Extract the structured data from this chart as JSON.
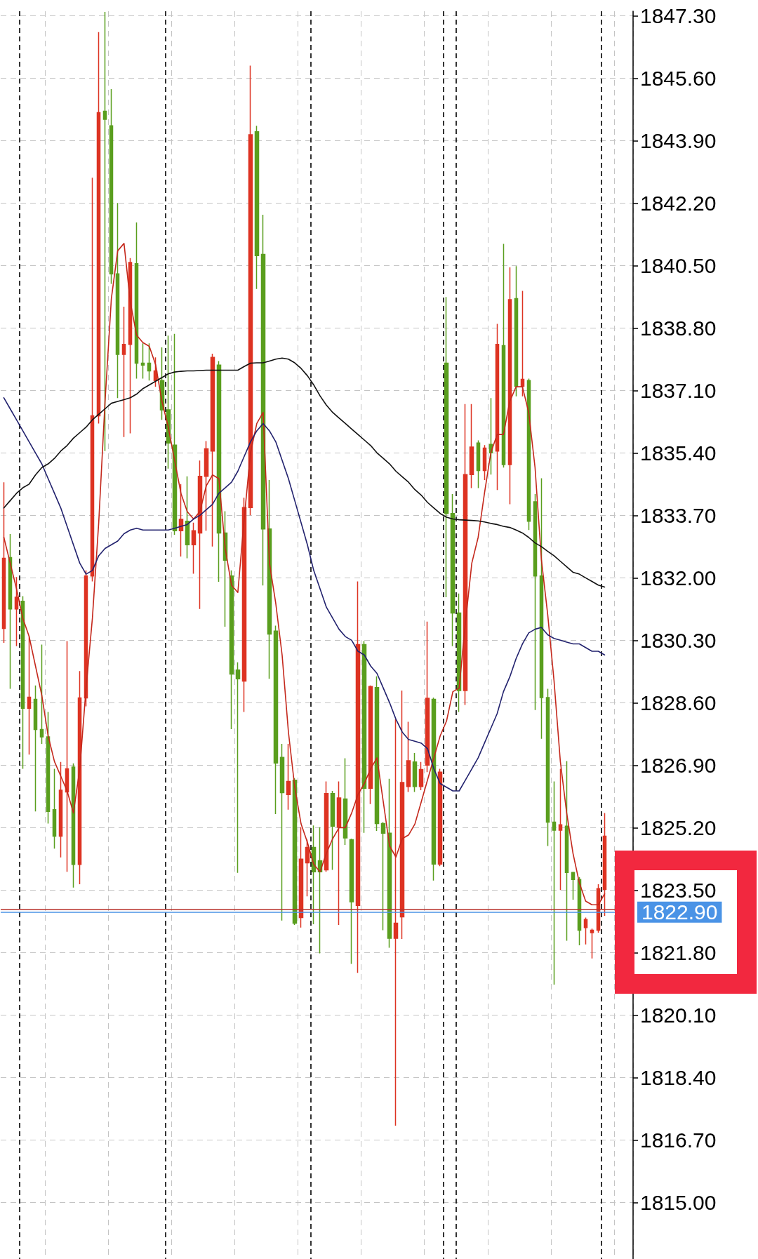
{
  "chart_data": {
    "type": "candlestick",
    "categories": [
      null,
      null,
      null,
      null,
      null,
      null,
      null,
      null,
      null,
      null,
      null,
      null,
      null,
      null,
      null,
      null,
      null,
      null,
      null,
      null,
      null,
      null,
      null,
      null,
      null,
      null,
      null,
      null,
      null,
      null,
      null,
      null,
      null,
      null,
      null,
      null,
      null,
      null,
      null,
      null,
      null,
      null,
      null,
      null,
      null,
      null,
      null,
      null,
      null,
      null,
      null,
      null,
      null,
      null,
      null,
      null,
      null,
      null,
      null,
      null,
      null,
      null,
      null,
      null,
      null,
      null,
      null,
      null,
      null,
      null,
      null,
      null,
      null,
      null,
      null,
      null,
      null,
      null,
      null,
      null,
      null,
      null,
      null,
      null,
      null,
      null,
      null,
      null,
      null,
      null,
      null,
      null,
      null,
      null,
      null,
      null
    ],
    "series": [
      {
        "ohlc": [
          [
            1830.62,
            1834.6,
            1830.23,
            1832.53
          ],
          [
            1832.55,
            1833.19,
            1828.98,
            1831.15
          ],
          [
            1831.15,
            1832.02,
            1830.14,
            1831.47
          ],
          [
            1831.36,
            1831.5,
            1826.8,
            1828.45
          ],
          [
            1828.45,
            1830.4,
            1827.19,
            1828.75
          ],
          [
            1828.69,
            1829.07,
            1825.64,
            1827.87
          ],
          [
            1827.87,
            1830.18,
            1827.48,
            1827.67
          ],
          [
            1827.67,
            1828.35,
            1825.31,
            1825.64
          ],
          [
            1825.69,
            1826.8,
            1824.63,
            1824.97
          ],
          [
            1824.97,
            1826.99,
            1824.39,
            1826.22
          ],
          [
            1826.17,
            1830.28,
            1824.0,
            1826.8
          ],
          [
            1826.85,
            1826.95,
            1823.57,
            1824.2
          ],
          [
            1824.2,
            1829.46,
            1823.66,
            1828.73
          ],
          [
            1828.73,
            1832.2,
            1828.5,
            1832.05
          ],
          [
            1832.05,
            1842.89,
            1831.9,
            1836.41
          ],
          [
            1836.41,
            1846.85,
            1836.2,
            1844.66
          ],
          [
            1844.7,
            1847.4,
            1835.45,
            1844.48
          ],
          [
            1844.3,
            1845.3,
            1840.0,
            1840.27
          ],
          [
            1840.27,
            1842.2,
            1836.89,
            1838.08
          ],
          [
            1838.08,
            1839.38,
            1835.83,
            1838.35
          ],
          [
            1838.35,
            1840.7,
            1835.93,
            1840.58
          ],
          [
            1840.55,
            1841.67,
            1837.42,
            1837.84
          ],
          [
            1837.84,
            1838.38,
            1837.42,
            1837.79
          ],
          [
            1837.84,
            1838.38,
            1837.37,
            1837.63
          ],
          [
            1837.37,
            1838.0,
            1837.2,
            1837.63
          ],
          [
            1837.37,
            1838.27,
            1836.3,
            1836.57
          ],
          [
            1836.57,
            1838.59,
            1834.97,
            1835.67
          ],
          [
            1835.61,
            1838.64,
            1833.17,
            1833.28
          ],
          [
            1833.28,
            1834.55,
            1832.58,
            1833.59
          ],
          [
            1833.54,
            1834.76,
            1832.53,
            1832.9
          ],
          [
            1832.9,
            1833.5,
            1832.11,
            1833.28
          ],
          [
            1833.22,
            1835.19,
            1831.15,
            1834.76
          ],
          [
            1834.76,
            1835.72,
            1833.28,
            1835.51
          ],
          [
            1835.45,
            1838.1,
            1832.85,
            1838.0
          ],
          [
            1837.79,
            1837.9,
            1831.89,
            1833.22
          ],
          [
            1833.22,
            1833.81,
            1830.67,
            1832.48
          ],
          [
            1832.05,
            1832.2,
            1827.88,
            1829.38
          ],
          [
            1829.49,
            1829.7,
            1823.97,
            1829.25
          ],
          [
            1829.19,
            1834.18,
            1828.35,
            1833.91
          ],
          [
            1833.91,
            1845.94,
            1833.7,
            1844.06
          ],
          [
            1844.14,
            1844.3,
            1839.86,
            1840.77
          ],
          [
            1840.8,
            1841.88,
            1831.79,
            1833.33
          ],
          [
            1833.33,
            1834.66,
            1829.25,
            1830.47
          ],
          [
            1830.55,
            1830.7,
            1825.57,
            1826.96
          ],
          [
            1827.11,
            1827.48,
            1822.67,
            1826.15
          ],
          [
            1826.1,
            1827.48,
            1825.69,
            1826.46
          ],
          [
            1826.49,
            1826.55,
            1822.55,
            1822.6
          ],
          [
            1822.75,
            1825.21,
            1822.48,
            1824.34
          ],
          [
            1824.24,
            1824.87,
            1823.33,
            1824.66
          ],
          [
            1824.66,
            1825.26,
            1822.57,
            1824.0
          ],
          [
            1824.3,
            1825.21,
            1821.78,
            1824.0
          ],
          [
            1824.05,
            1826.46,
            1824.0,
            1826.13
          ],
          [
            1826.13,
            1826.2,
            1824.05,
            1825.24
          ],
          [
            1825.21,
            1826.46,
            1822.55,
            1826.01
          ],
          [
            1825.98,
            1827.09,
            1824.73,
            1824.92
          ],
          [
            1824.87,
            1824.9,
            1821.49,
            1823.18
          ],
          [
            1823.08,
            1831.9,
            1821.25,
            1830.18
          ],
          [
            1830.18,
            1830.28,
            1825.06,
            1826.27
          ],
          [
            1826.27,
            1829.07,
            1825.84,
            1829.04
          ],
          [
            1829.01,
            1829.32,
            1825.11,
            1825.31
          ],
          [
            1825.31,
            1825.35,
            1822.41,
            1825.05
          ],
          [
            1825.05,
            1826.53,
            1821.93,
            1822.19
          ],
          [
            1822.19,
            1828.15,
            1817.09,
            1822.6
          ],
          [
            1822.77,
            1828.93,
            1822.17,
            1826.43
          ],
          [
            1826.32,
            1828.08,
            1826.17,
            1827.02
          ],
          [
            1826.99,
            1827.23,
            1826.17,
            1826.32
          ],
          [
            1826.32,
            1826.99,
            1826.22,
            1826.78
          ],
          [
            1826.9,
            1830.81,
            1826.71,
            1828.72
          ],
          [
            1828.69,
            1828.74,
            1823.76,
            1824.21
          ],
          [
            1824.21,
            1826.8,
            1824.15,
            1826.71
          ],
          [
            1837.84,
            1839.64,
            1831.47,
            1833.75
          ],
          [
            1833.75,
            1834.28,
            1830.14,
            1831.04
          ],
          [
            1831.04,
            1831.57,
            1828.35,
            1828.93
          ],
          [
            1828.93,
            1836.73,
            1828.54,
            1834.81
          ],
          [
            1834.81,
            1836.73,
            1834.44,
            1835.56
          ],
          [
            1835.67,
            1835.74,
            1834.44,
            1834.92
          ],
          [
            1834.92,
            1835.61,
            1834.66,
            1835.53
          ],
          [
            1835.63,
            1836.89,
            1834.81,
            1835.4
          ],
          [
            1835.45,
            1838.91,
            1834.39,
            1838.35
          ],
          [
            1838.32,
            1841.09,
            1835.0,
            1835.08
          ],
          [
            1835.08,
            1840.45,
            1834.0,
            1839.57
          ],
          [
            1839.6,
            1840.48,
            1836.94,
            1837.21
          ],
          [
            1837.21,
            1839.81,
            1836.94,
            1837.4
          ],
          [
            1837.37,
            1837.42,
            1833.3,
            1833.54
          ],
          [
            1834.07,
            1834.28,
            1828.4,
            1832.05
          ],
          [
            1832.05,
            1834.71,
            1827.62,
            1828.74
          ],
          [
            1828.74,
            1828.98,
            1824.7,
            1825.35
          ],
          [
            1825.35,
            1826.46,
            1820.93,
            1825.13
          ],
          [
            1825.13,
            1826.8,
            1823.5,
            1825.28
          ],
          [
            1825.24,
            1827.01,
            1822.12,
            1823.98
          ],
          [
            1823.98,
            1824.0,
            1823.24,
            1823.79
          ],
          [
            1823.79,
            1823.85,
            1822.0,
            1822.41
          ],
          [
            1822.48,
            1822.75,
            1822.02,
            1822.7
          ],
          [
            1822.34,
            1822.45,
            1821.64,
            1822.41
          ],
          [
            1822.41,
            1823.66,
            1822.34,
            1823.54
          ],
          [
            1823.52,
            1825.6,
            1822.8,
            1824.97
          ]
        ],
        "colors": [
          "#dd3322",
          "#5a9e1e",
          "#dd3322",
          "#5a9e1e",
          "#dd3322",
          "#5a9e1e",
          "#5a9e1e",
          "#5a9e1e",
          "#5a9e1e",
          "#dd3322",
          "#dd3322",
          "#5a9e1e",
          "#dd3322",
          "#dd3322",
          "#dd3322",
          "#dd3322",
          "#5a9e1e",
          "#5a9e1e",
          "#5a9e1e",
          "#dd3322",
          "#dd3322",
          "#5a9e1e",
          "#5a9e1e",
          "#5a9e1e",
          "#dd3322",
          "#5a9e1e",
          "#5a9e1e",
          "#5a9e1e",
          "#dd3322",
          "#5a9e1e",
          "#dd3322",
          "#dd3322",
          "#dd3322",
          "#dd3322",
          "#5a9e1e",
          "#5a9e1e",
          "#5a9e1e",
          "#5a9e1e",
          "#dd3322",
          "#dd3322",
          "#5a9e1e",
          "#5a9e1e",
          "#5a9e1e",
          "#5a9e1e",
          "#5a9e1e",
          "#dd3322",
          "#5a9e1e",
          "#dd3322",
          "#dd3322",
          "#5a9e1e",
          "#5a9e1e",
          "#dd3322",
          "#5a9e1e",
          "#dd3322",
          "#5a9e1e",
          "#5a9e1e",
          "#dd3322",
          "#5a9e1e",
          "#dd3322",
          "#5a9e1e",
          "#5a9e1e",
          "#5a9e1e",
          "#dd3322",
          "#dd3322",
          "#dd3322",
          "#5a9e1e",
          "#dd3322",
          "#dd3322",
          "#5a9e1e",
          "#dd3322",
          "#5a9e1e",
          "#5a9e1e",
          "#5a9e1e",
          "#dd3322",
          "#dd3322",
          "#5a9e1e",
          "#dd3322",
          "#5a9e1e",
          "#dd3322",
          "#5a9e1e",
          "#dd3322",
          "#5a9e1e",
          "#dd3322",
          "#5a9e1e",
          "#5a9e1e",
          "#5a9e1e",
          "#5a9e1e",
          "#5a9e1e",
          "#dd3322",
          "#5a9e1e",
          "#5a9e1e",
          "#5a9e1e",
          "#dd3322",
          "#dd3322",
          "#dd3322",
          "#dd3322"
        ]
      },
      {
        "type": "line",
        "color": "#c4281c",
        "values": [
          1833.1,
          1832.4,
          1831.7,
          1830.9,
          1830.4,
          1829.6,
          1828.8,
          1827.7,
          1827.0,
          1826.6,
          1826.2,
          1825.6,
          1826.8,
          1829.0,
          1830.9,
          1833.5,
          1836.8,
          1839.6,
          1840.9,
          1841.1,
          1839.5,
          1838.6,
          1838.4,
          1838.3,
          1837.8,
          1836.8,
          1836.1,
          1835.2,
          1834.3,
          1833.8,
          1833.6,
          1833.8,
          1834.5,
          1834.8,
          1834.7,
          1832.8,
          1831.8,
          1831.6,
          1833.6,
          1835.4,
          1836.2,
          1836.5,
          1832.4,
          1831.3,
          1829.9,
          1827.8,
          1826.3,
          1825.3,
          1824.8,
          1824.2,
          1824.0,
          1824.5,
          1824.9,
          1825.2,
          1825.2,
          1825.6,
          1826.1,
          1826.4,
          1826.8,
          1827.1,
          1825.9,
          1824.7,
          1824.4,
          1824.9,
          1825.0,
          1825.3,
          1825.9,
          1826.5,
          1827.1,
          1827.7,
          1828.1,
          1828.9,
          1829.0,
          1830.8,
          1832.4,
          1833.1,
          1834.3,
          1835.4,
          1835.9,
          1835.9,
          1836.8,
          1837.2,
          1837.2,
          1836.5,
          1835.0,
          1832.5,
          1831.0,
          1829.2,
          1827.0,
          1825.6,
          1824.5,
          1823.7,
          1823.2,
          1823.1,
          1823.1,
          1823.4
        ]
      },
      {
        "type": "line",
        "color": "#22226e",
        "values": [
          1836.9,
          1836.6,
          1836.3,
          1836.0,
          1835.7,
          1835.4,
          1835.1,
          1834.7,
          1834.3,
          1833.9,
          1833.4,
          1832.9,
          1832.4,
          1832.1,
          1832.2,
          1832.6,
          1832.8,
          1832.9,
          1833.0,
          1833.2,
          1833.3,
          1833.35,
          1833.3,
          1833.3,
          1833.3,
          1833.3,
          1833.3,
          1833.35,
          1833.4,
          1833.45,
          1833.6,
          1833.7,
          1833.85,
          1834.0,
          1834.3,
          1834.45,
          1834.6,
          1834.9,
          1835.3,
          1835.7,
          1836.0,
          1836.2,
          1836.0,
          1835.7,
          1835.2,
          1834.7,
          1834.1,
          1833.5,
          1832.9,
          1832.2,
          1831.7,
          1831.2,
          1830.9,
          1830.6,
          1830.4,
          1830.3,
          1830.0,
          1829.9,
          1829.6,
          1829.4,
          1829.0,
          1828.6,
          1828.15,
          1827.8,
          1827.6,
          1827.55,
          1827.5,
          1827.35,
          1826.8,
          1826.4,
          1826.3,
          1826.2,
          1826.2,
          1826.5,
          1826.8,
          1827.1,
          1827.5,
          1827.9,
          1828.3,
          1828.9,
          1829.3,
          1829.8,
          1830.2,
          1830.5,
          1830.6,
          1830.65,
          1830.45,
          1830.35,
          1830.3,
          1830.25,
          1830.2,
          1830.2,
          1830.1,
          1830.0,
          1830.0,
          1829.9
        ]
      },
      {
        "type": "line",
        "color": "#111111",
        "values": [
          1833.9,
          1834.1,
          1834.3,
          1834.45,
          1834.55,
          1834.8,
          1835.0,
          1835.1,
          1835.25,
          1835.45,
          1835.6,
          1835.8,
          1835.95,
          1836.1,
          1836.3,
          1836.45,
          1836.6,
          1836.75,
          1836.8,
          1836.85,
          1836.9,
          1837.0,
          1837.15,
          1837.25,
          1837.35,
          1837.45,
          1837.55,
          1837.6,
          1837.62,
          1837.63,
          1837.63,
          1837.64,
          1837.65,
          1837.65,
          1837.65,
          1837.65,
          1837.65,
          1837.65,
          1837.75,
          1837.84,
          1837.85,
          1837.85,
          1837.9,
          1837.95,
          1837.98,
          1837.95,
          1837.85,
          1837.7,
          1837.5,
          1837.25,
          1836.95,
          1836.7,
          1836.5,
          1836.35,
          1836.2,
          1836.05,
          1835.9,
          1835.75,
          1835.6,
          1835.4,
          1835.25,
          1835.1,
          1834.9,
          1834.75,
          1834.6,
          1834.4,
          1834.25,
          1834.05,
          1833.9,
          1833.75,
          1833.65,
          1833.6,
          1833.58,
          1833.57,
          1833.56,
          1833.55,
          1833.52,
          1833.48,
          1833.45,
          1833.4,
          1833.37,
          1833.3,
          1833.22,
          1833.1,
          1832.95,
          1832.85,
          1832.72,
          1832.6,
          1832.45,
          1832.3,
          1832.15,
          1832.1,
          1832.0,
          1831.9,
          1831.8,
          1831.75
        ]
      }
    ],
    "ylim": [
      1813.46,
      1847.42
    ],
    "yticks": [
      {
        "value": 1815.0,
        "label": "1815.00"
      },
      {
        "value": 1816.7,
        "label": "1816.70"
      },
      {
        "value": 1818.4,
        "label": "1818.40"
      },
      {
        "value": 1820.1,
        "label": "1820.10"
      },
      {
        "value": 1821.8,
        "label": "1821.80"
      },
      {
        "value": 1823.5,
        "label": "1823.50"
      },
      {
        "value": 1825.2,
        "label": "1825.20"
      },
      {
        "value": 1826.9,
        "label": "1826.90"
      },
      {
        "value": 1828.6,
        "label": "1828.60"
      },
      {
        "value": 1830.3,
        "label": "1830.30"
      },
      {
        "value": 1832.0,
        "label": "1832.00"
      },
      {
        "value": 1833.7,
        "label": "1833.70"
      },
      {
        "value": 1835.4,
        "label": "1835.40"
      },
      {
        "value": 1837.1,
        "label": "1837.10"
      },
      {
        "value": 1838.8,
        "label": "1838.80"
      },
      {
        "value": 1840.5,
        "label": "1840.50"
      },
      {
        "value": 1842.2,
        "label": "1842.20"
      },
      {
        "value": 1843.9,
        "label": "1843.90"
      },
      {
        "value": 1845.6,
        "label": "1845.60"
      },
      {
        "value": 1847.3,
        "label": "1847.30"
      }
    ],
    "ref_lines": [
      {
        "axis": "y",
        "value": 1822.97,
        "color": "#b8312a"
      },
      {
        "axis": "y",
        "value": 1822.9,
        "label": "1822.90",
        "color": "#4a93e6"
      }
    ],
    "tick_labels": "y",
    "grid": true,
    "marker": "none"
  }
}
